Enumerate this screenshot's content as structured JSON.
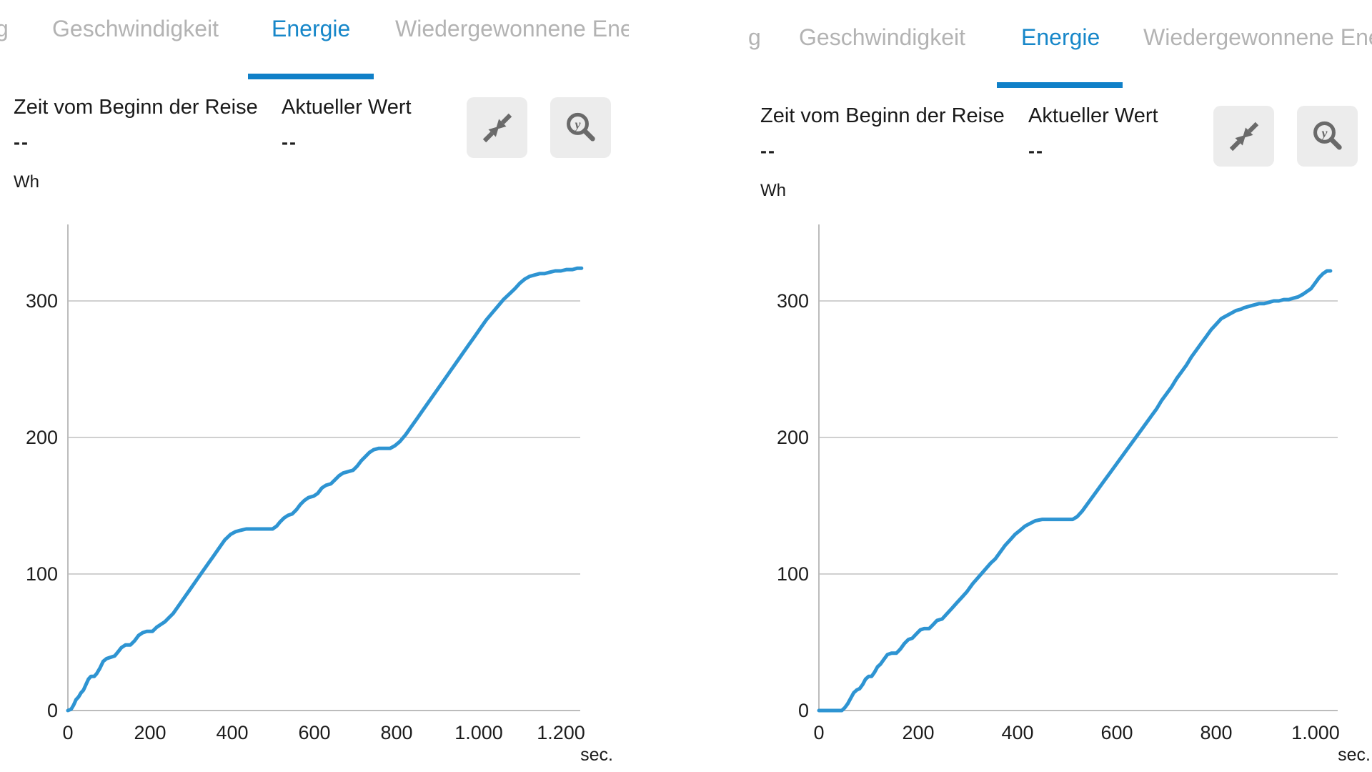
{
  "colors": {
    "accent_blue": "#1787c9",
    "underline_blue": "#1080c8",
    "series_blue": "#2e94d2",
    "inactive_tab_gray": "#b3b3b3",
    "button_bg": "#ececec",
    "icon_gray": "#6a6a6a",
    "grid_gray": "#d0d0d0",
    "axis_gray": "#bcbcbc"
  },
  "icons": {
    "collapse": "collapse-arrows",
    "zoom_y": "magnifier-y",
    "zoom_y_letter": "y"
  },
  "panels": [
    {
      "tabs": {
        "clipped_left": "g",
        "items": [
          {
            "label": "Geschwindigkeit",
            "active": false
          },
          {
            "label": "Energie",
            "active": true
          },
          {
            "label": "Wiedergewonnene Energie",
            "active": false
          }
        ]
      },
      "info": [
        {
          "label": "Zeit vom Beginn der Reise",
          "value": "--"
        },
        {
          "label": "Aktueller Wert",
          "value": "--"
        }
      ]
    },
    {
      "tabs": {
        "clipped_left": "g",
        "items": [
          {
            "label": "Geschwindigkeit",
            "active": false
          },
          {
            "label": "Energie",
            "active": true
          },
          {
            "label": "Wiedergewonnene Energie",
            "active": false
          }
        ]
      },
      "info": [
        {
          "label": "Zeit vom Beginn der Reise",
          "value": "--"
        },
        {
          "label": "Aktueller Wert",
          "value": "--"
        }
      ]
    }
  ],
  "chart_data": [
    {
      "type": "line",
      "title": "Energie",
      "ylabel": "Wh",
      "xlabel": "sec.",
      "grid": true,
      "legend": false,
      "y_ticks": [
        0,
        100,
        200,
        300
      ],
      "x_ticks": [
        {
          "value": 0,
          "label": "0"
        },
        {
          "value": 200,
          "label": "200"
        },
        {
          "value": 400,
          "label": "400"
        },
        {
          "value": 600,
          "label": "600"
        },
        {
          "value": 800,
          "label": "800"
        },
        {
          "value": 1000,
          "label": "1.000"
        },
        {
          "value": 1200,
          "label": "1.200"
        }
      ],
      "x_range": [
        0,
        1245
      ],
      "y_range": [
        0,
        357
      ],
      "series": [
        {
          "name": "Energie (Wh)",
          "color": "#2e94d2",
          "points": [
            [
              0,
              0
            ],
            [
              8,
              1
            ],
            [
              14,
              4
            ],
            [
              20,
              8
            ],
            [
              26,
              10
            ],
            [
              32,
              13
            ],
            [
              38,
              15
            ],
            [
              44,
              19
            ],
            [
              50,
              23
            ],
            [
              56,
              25
            ],
            [
              64,
              25
            ],
            [
              70,
              27
            ],
            [
              78,
              31
            ],
            [
              86,
              36
            ],
            [
              94,
              38
            ],
            [
              104,
              39
            ],
            [
              114,
              40
            ],
            [
              122,
              43
            ],
            [
              130,
              46
            ],
            [
              140,
              48
            ],
            [
              152,
              48
            ],
            [
              162,
              51
            ],
            [
              172,
              55
            ],
            [
              182,
              57
            ],
            [
              192,
              58
            ],
            [
              206,
              58
            ],
            [
              216,
              61
            ],
            [
              226,
              63
            ],
            [
              236,
              65
            ],
            [
              246,
              68
            ],
            [
              256,
              71
            ],
            [
              270,
              77
            ],
            [
              284,
              83
            ],
            [
              298,
              89
            ],
            [
              312,
              95
            ],
            [
              326,
              101
            ],
            [
              340,
              107
            ],
            [
              354,
              113
            ],
            [
              368,
              119
            ],
            [
              382,
              125
            ],
            [
              396,
              129
            ],
            [
              408,
              131
            ],
            [
              420,
              132
            ],
            [
              434,
              133
            ],
            [
              450,
              133
            ],
            [
              466,
              133
            ],
            [
              482,
              133
            ],
            [
              498,
              133
            ],
            [
              508,
              135
            ],
            [
              516,
              138
            ],
            [
              526,
              141
            ],
            [
              536,
              143
            ],
            [
              546,
              144
            ],
            [
              556,
              147
            ],
            [
              566,
              151
            ],
            [
              576,
              154
            ],
            [
              586,
              156
            ],
            [
              598,
              157
            ],
            [
              608,
              159
            ],
            [
              618,
              163
            ],
            [
              628,
              165
            ],
            [
              640,
              166
            ],
            [
              650,
              169
            ],
            [
              660,
              172
            ],
            [
              670,
              174
            ],
            [
              682,
              175
            ],
            [
              694,
              176
            ],
            [
              704,
              179
            ],
            [
              714,
              183
            ],
            [
              724,
              186
            ],
            [
              734,
              189
            ],
            [
              744,
              191
            ],
            [
              756,
              192
            ],
            [
              770,
              192
            ],
            [
              784,
              192
            ],
            [
              796,
              194
            ],
            [
              808,
              197
            ],
            [
              822,
              202
            ],
            [
              836,
              208
            ],
            [
              850,
              214
            ],
            [
              864,
              220
            ],
            [
              878,
              226
            ],
            [
              892,
              232
            ],
            [
              906,
              238
            ],
            [
              920,
              244
            ],
            [
              934,
              250
            ],
            [
              948,
              256
            ],
            [
              962,
              262
            ],
            [
              976,
              268
            ],
            [
              990,
              274
            ],
            [
              1004,
              280
            ],
            [
              1018,
              286
            ],
            [
              1032,
              291
            ],
            [
              1046,
              296
            ],
            [
              1060,
              301
            ],
            [
              1074,
              305
            ],
            [
              1088,
              309
            ],
            [
              1100,
              313
            ],
            [
              1112,
              316
            ],
            [
              1124,
              318
            ],
            [
              1136,
              319
            ],
            [
              1148,
              320
            ],
            [
              1160,
              320
            ],
            [
              1172,
              321
            ],
            [
              1186,
              322
            ],
            [
              1200,
              322
            ],
            [
              1214,
              323
            ],
            [
              1228,
              323
            ],
            [
              1240,
              324
            ],
            [
              1250,
              324
            ]
          ]
        }
      ]
    },
    {
      "type": "line",
      "title": "Energie",
      "ylabel": "Wh",
      "xlabel": "sec.",
      "grid": true,
      "legend": false,
      "y_ticks": [
        0,
        100,
        200,
        300
      ],
      "x_ticks": [
        {
          "value": 0,
          "label": "0"
        },
        {
          "value": 200,
          "label": "200"
        },
        {
          "value": 400,
          "label": "400"
        },
        {
          "value": 600,
          "label": "600"
        },
        {
          "value": 800,
          "label": "800"
        },
        {
          "value": 1000,
          "label": "1.000"
        }
      ],
      "x_range": [
        0,
        1045
      ],
      "y_range": [
        0,
        357
      ],
      "series": [
        {
          "name": "Energie (Wh)",
          "color": "#2e94d2",
          "points": [
            [
              0,
              0
            ],
            [
              46,
              0
            ],
            [
              52,
              2
            ],
            [
              58,
              5
            ],
            [
              64,
              9
            ],
            [
              70,
              13
            ],
            [
              76,
              15
            ],
            [
              82,
              16
            ],
            [
              88,
              19
            ],
            [
              94,
              23
            ],
            [
              100,
              25
            ],
            [
              106,
              25
            ],
            [
              112,
              28
            ],
            [
              118,
              32
            ],
            [
              124,
              34
            ],
            [
              130,
              37
            ],
            [
              138,
              41
            ],
            [
              146,
              42
            ],
            [
              156,
              42
            ],
            [
              164,
              45
            ],
            [
              172,
              49
            ],
            [
              180,
              52
            ],
            [
              188,
              53
            ],
            [
              196,
              56
            ],
            [
              204,
              59
            ],
            [
              212,
              60
            ],
            [
              222,
              60
            ],
            [
              230,
              63
            ],
            [
              238,
              66
            ],
            [
              248,
              67
            ],
            [
              258,
              71
            ],
            [
              268,
              75
            ],
            [
              278,
              79
            ],
            [
              288,
              83
            ],
            [
              298,
              87
            ],
            [
              310,
              93
            ],
            [
              322,
              98
            ],
            [
              334,
              103
            ],
            [
              346,
              108
            ],
            [
              355,
              111
            ],
            [
              365,
              116
            ],
            [
              375,
              121
            ],
            [
              385,
              125
            ],
            [
              395,
              129
            ],
            [
              405,
              132
            ],
            [
              415,
              135
            ],
            [
              425,
              137
            ],
            [
              436,
              139
            ],
            [
              450,
              140
            ],
            [
              465,
              140
            ],
            [
              480,
              140
            ],
            [
              495,
              140
            ],
            [
              511,
              140
            ],
            [
              520,
              142
            ],
            [
              530,
              146
            ],
            [
              540,
              151
            ],
            [
              550,
              156
            ],
            [
              560,
              161
            ],
            [
              570,
              166
            ],
            [
              580,
              171
            ],
            [
              590,
              176
            ],
            [
              600,
              181
            ],
            [
              610,
              186
            ],
            [
              620,
              191
            ],
            [
              630,
              196
            ],
            [
              640,
              201
            ],
            [
              650,
              206
            ],
            [
              660,
              211
            ],
            [
              670,
              216
            ],
            [
              680,
              221
            ],
            [
              690,
              227
            ],
            [
              700,
              232
            ],
            [
              710,
              237
            ],
            [
              720,
              243
            ],
            [
              730,
              248
            ],
            [
              740,
              253
            ],
            [
              750,
              259
            ],
            [
              760,
              264
            ],
            [
              770,
              269
            ],
            [
              780,
              274
            ],
            [
              790,
              279
            ],
            [
              800,
              283
            ],
            [
              810,
              287
            ],
            [
              820,
              289
            ],
            [
              830,
              291
            ],
            [
              840,
              293
            ],
            [
              850,
              294
            ],
            [
              856,
              295
            ],
            [
              866,
              296
            ],
            [
              876,
              297
            ],
            [
              886,
              298
            ],
            [
              896,
              298
            ],
            [
              906,
              299
            ],
            [
              916,
              300
            ],
            [
              926,
              300
            ],
            [
              936,
              301
            ],
            [
              946,
              301
            ],
            [
              955,
              302
            ],
            [
              965,
              303
            ],
            [
              975,
              305
            ],
            [
              983,
              307
            ],
            [
              991,
              309
            ],
            [
              999,
              313
            ],
            [
              1007,
              317
            ],
            [
              1015,
              320
            ],
            [
              1023,
              322
            ],
            [
              1030,
              322
            ]
          ]
        }
      ]
    }
  ]
}
